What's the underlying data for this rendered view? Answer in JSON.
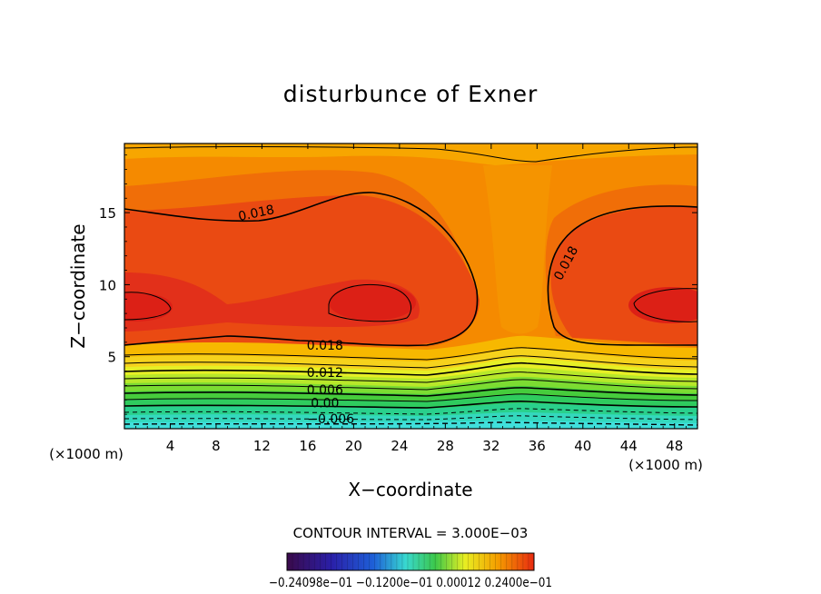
{
  "chart_data": {
    "type": "contour",
    "title": "disturbunce of Exner",
    "xlabel": "X−coordinate",
    "ylabel": "Z−coordinate",
    "x_unit_left": "(×1000 m)",
    "x_unit_right": "(×1000 m)",
    "xlim": [
      0,
      50
    ],
    "ylim": [
      0,
      19.8
    ],
    "xticks": [
      4,
      8,
      12,
      16,
      20,
      24,
      28,
      32,
      36,
      40,
      44,
      48
    ],
    "yticks": [
      5,
      10,
      15
    ],
    "contour_interval_text": "CONTOUR INTERVAL = 3.000E−03",
    "contour_interval": 0.003,
    "contour_labels": [
      {
        "text": "0.018",
        "x": 11.5,
        "y": 15.0
      },
      {
        "text": "0.018",
        "x": 38.5,
        "y": 11.5
      },
      {
        "text": "0.018",
        "x": 17.5,
        "y": 5.8
      },
      {
        "text": "0.012",
        "x": 17.5,
        "y": 3.9
      },
      {
        "text": "0.006",
        "x": 17.5,
        "y": 2.7
      },
      {
        "text": "0.00",
        "x": 17.5,
        "y": 1.8
      },
      {
        "text": "−0.006",
        "x": 18.0,
        "y": 0.7
      }
    ],
    "colorbar_labels": "−0.24098e−01 −0.1200e−01 0.00012 0.2400e−01",
    "colorbar_range": [
      -0.024098,
      0.024
    ],
    "colors": {
      "low": "#5a0f80",
      "mid_blue": "#1a3ad0",
      "cyan": "#36dbd8",
      "green": "#33c445",
      "yellow": "#f2f020",
      "orange": "#f7a200",
      "high": "#e82a10"
    }
  }
}
